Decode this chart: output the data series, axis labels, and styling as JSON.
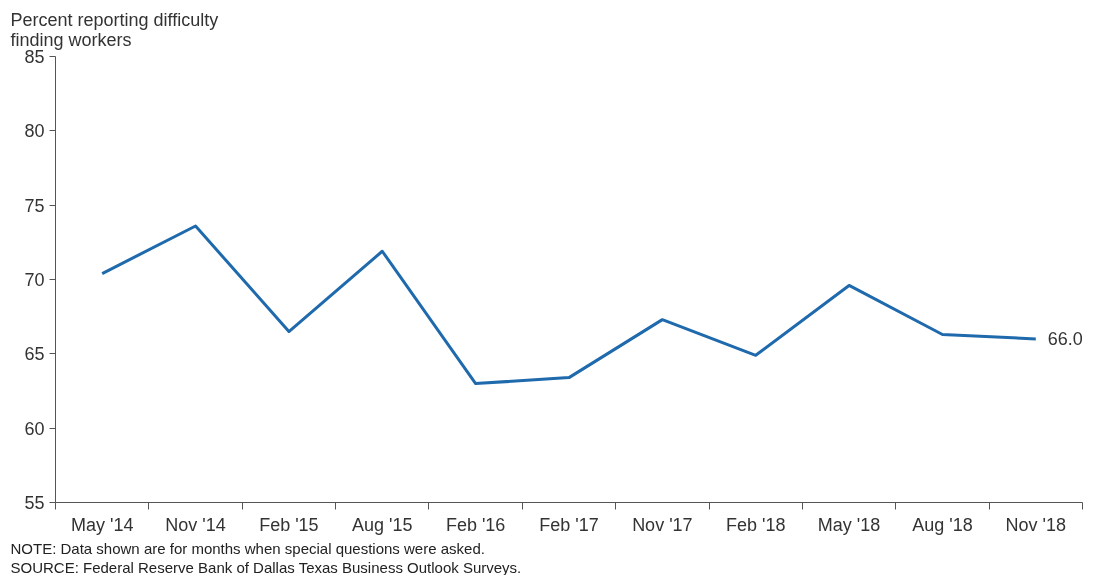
{
  "chart_data": {
    "type": "line",
    "ylabel": "Percent reporting difficulty\nfinding workers",
    "categories": [
      "May '14",
      "Nov '14",
      "Feb '15",
      "Aug '15",
      "Feb '16",
      "Feb '17",
      "Nov '17",
      "Feb '18",
      "May '18",
      "Aug '18",
      "Nov '18"
    ],
    "series": [
      {
        "color": "#1f6aad",
        "values": [
          70.4,
          73.6,
          66.5,
          71.9,
          63.0,
          63.4,
          67.3,
          64.9,
          69.6,
          66.3,
          66.0
        ],
        "value_labels": [
          null,
          null,
          null,
          null,
          null,
          null,
          null,
          null,
          null,
          null,
          "66.0"
        ]
      }
    ],
    "ylim": [
      55,
      85
    ],
    "yticks": [
      55,
      60,
      65,
      70,
      75,
      80,
      85
    ],
    "grid": false,
    "marker": "none",
    "line_style": "solid",
    "annotations": [
      "NOTE: Data shown are for months when special questions were asked.",
      "SOURCE: Federal Reserve Bank of Dallas Texas Business Outlook Surveys."
    ]
  }
}
